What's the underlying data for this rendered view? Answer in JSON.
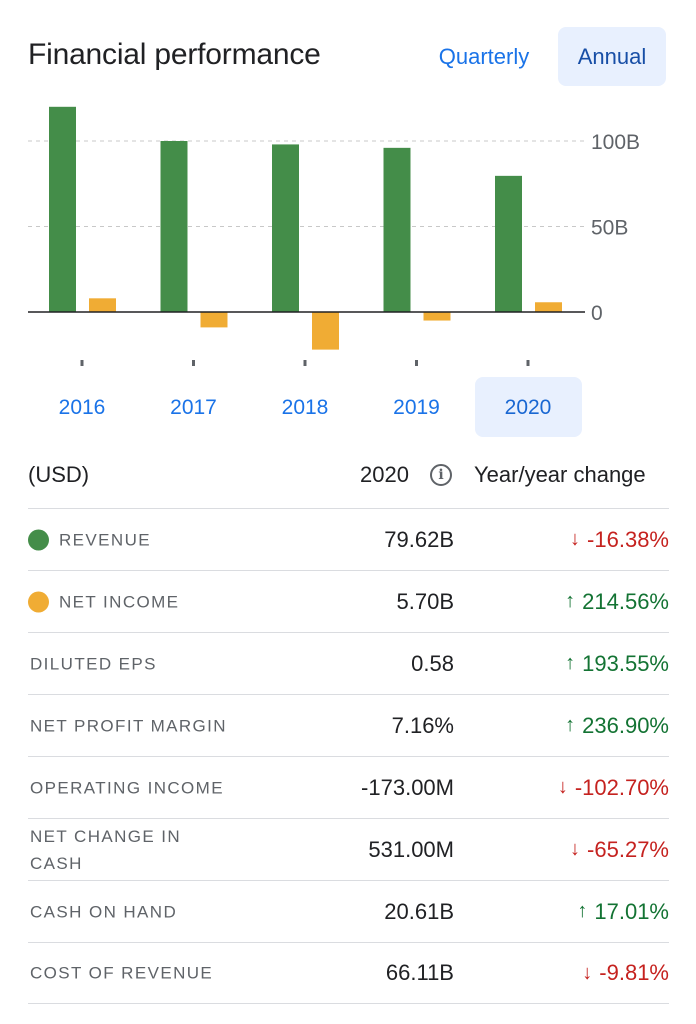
{
  "header": {
    "title": "Financial performance",
    "tabs": [
      {
        "label": "Quarterly",
        "selected": false
      },
      {
        "label": "Annual",
        "selected": true
      }
    ]
  },
  "colors": {
    "revenue": "#448d49",
    "net_income": "#f0ac34",
    "accent": "#1a73e8",
    "down": "#c5221f",
    "up": "#137333"
  },
  "chart_data": {
    "type": "bar",
    "categories": [
      "2016",
      "2017",
      "2018",
      "2019",
      "2020"
    ],
    "selected_category": "2020",
    "series": [
      {
        "values": [
          120,
          100,
          98,
          96,
          79.62
        ],
        "color": "#448d49"
      },
      {
        "values": [
          8,
          -9,
          -22,
          -5,
          5.7
        ],
        "color": "#f0ac34"
      }
    ],
    "y_ticks": [
      "100B",
      "50B",
      "0"
    ],
    "y_tick_values": [
      100,
      50,
      0
    ],
    "ylim": [
      -25,
      125
    ],
    "grid": true,
    "unit": "B"
  },
  "table": {
    "currency_label": "(USD)",
    "year_label": "2020",
    "change_label": "Year/year change",
    "rows": [
      {
        "label": "Revenue",
        "value": "79.62B",
        "change": "-16.38%",
        "direction": "down",
        "dot": "#448d49"
      },
      {
        "label": "Net income",
        "value": "5.70B",
        "change": "214.56%",
        "direction": "up",
        "dot": "#f0ac34"
      },
      {
        "label": "Diluted EPS",
        "value": "0.58",
        "change": "193.55%",
        "direction": "up"
      },
      {
        "label": "Net profit margin",
        "value": "7.16%",
        "change": "236.90%",
        "direction": "up"
      },
      {
        "label": "Operating income",
        "value": "-173.00M",
        "change": "-102.70%",
        "direction": "down"
      },
      {
        "label": "Net change in cash",
        "value": "531.00M",
        "change": "-65.27%",
        "direction": "down"
      },
      {
        "label": "Cash on hand",
        "value": "20.61B",
        "change": "17.01%",
        "direction": "up"
      },
      {
        "label": "Cost of revenue",
        "value": "66.11B",
        "change": "-9.81%",
        "direction": "down"
      }
    ]
  }
}
